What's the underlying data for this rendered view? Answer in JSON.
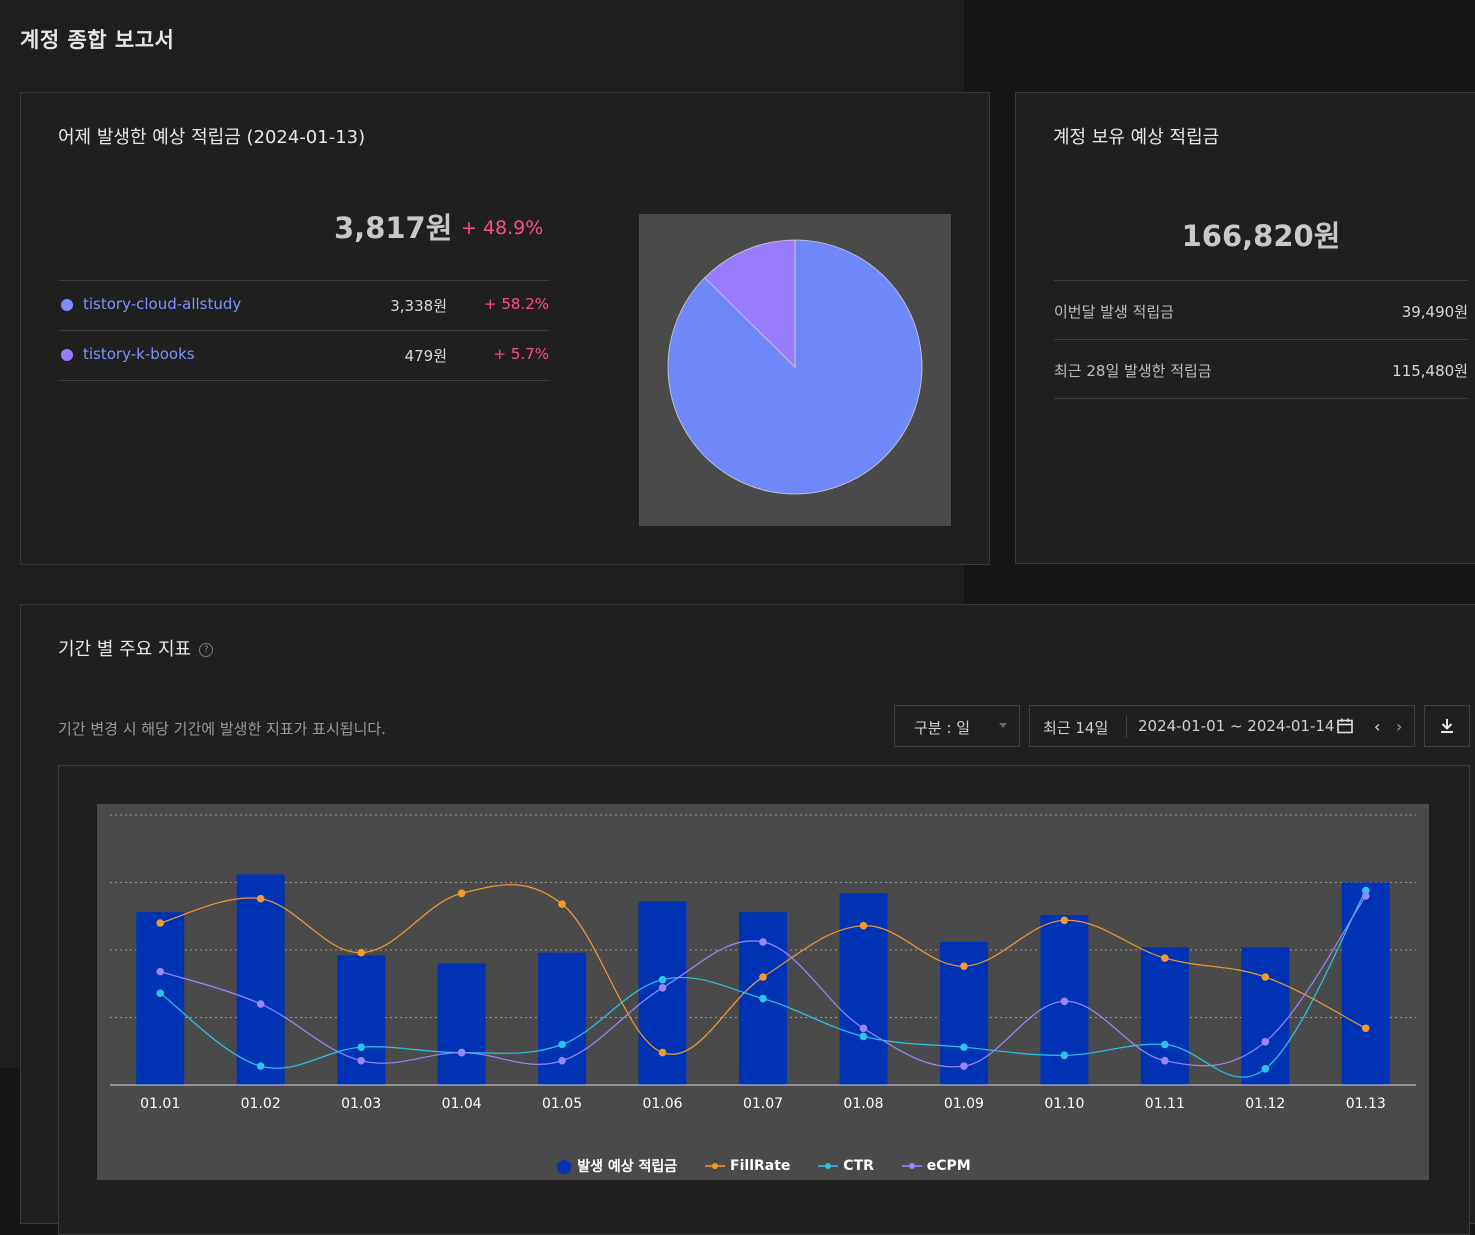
{
  "page": {
    "title": "계정 종합 보고서"
  },
  "yesterday": {
    "title": "어제 발생한 예상 적립금 (2024-01-13)",
    "total": "3,817원",
    "change": "+ 48.9%",
    "rows": [
      {
        "name": "tistory-cloud-allstudy",
        "value": "3,338원",
        "change": "+ 58.2%",
        "color": "#7b8cff"
      },
      {
        "name": "tistory-k-books",
        "value": "479원",
        "change": "+ 5.7%",
        "color": "#9b7bff"
      }
    ]
  },
  "pie": {
    "share": [
      0.874,
      0.126
    ],
    "colors": [
      "#6e88fa",
      "#9b7bff"
    ]
  },
  "balance": {
    "title": "계정 보유 예상 적립금",
    "total": "166,820원",
    "rows": [
      {
        "label": "이번달 발생 적립금",
        "value": "39,490원"
      },
      {
        "label": "최근 28일 발생한 적립금",
        "value": "115,480원"
      }
    ]
  },
  "metrics": {
    "title": "기간 별 주요 지표",
    "help_icon": "question-circle-icon",
    "description": "기간 변경 시 해당 기간에 발생한 지표가 표시됩니다.",
    "unit_select": "구분 : 일",
    "range_recent": "최근 14일",
    "range_dates": "2024-01-01 ~ 2024-01-14",
    "prev": "‹",
    "next": "›",
    "download_icon": "download-icon"
  },
  "chart_data": {
    "type": "bar+line",
    "categories": [
      "01.01",
      "01.02",
      "01.03",
      "01.04",
      "01.05",
      "01.06",
      "01.07",
      "01.08",
      "01.09",
      "01.10",
      "01.11",
      "01.12",
      "01.13"
    ],
    "series": [
      {
        "name": "발생 예상 적립금",
        "kind": "bar",
        "color": "#0033b3",
        "values": [
          0.64,
          0.78,
          0.48,
          0.45,
          0.49,
          0.68,
          0.64,
          0.71,
          0.53,
          0.63,
          0.51,
          0.51,
          0.75
        ]
      },
      {
        "name": "FillRate",
        "kind": "line",
        "color": "#f39a2f",
        "values": [
          0.6,
          0.69,
          0.49,
          0.71,
          0.67,
          0.12,
          0.4,
          0.59,
          0.44,
          0.61,
          0.47,
          0.4,
          0.21
        ]
      },
      {
        "name": "CTR",
        "kind": "line",
        "color": "#2bc4ea",
        "values": [
          0.34,
          0.07,
          0.14,
          0.12,
          0.15,
          0.39,
          0.32,
          0.18,
          0.14,
          0.11,
          0.15,
          0.06,
          0.72
        ]
      },
      {
        "name": "eCPM",
        "kind": "line",
        "color": "#9a86ff",
        "values": [
          0.42,
          0.3,
          0.09,
          0.12,
          0.09,
          0.36,
          0.53,
          0.21,
          0.07,
          0.31,
          0.09,
          0.16,
          0.7
        ]
      }
    ],
    "ylim": [
      0,
      1
    ],
    "grid": true,
    "legend": "bottom-center"
  }
}
